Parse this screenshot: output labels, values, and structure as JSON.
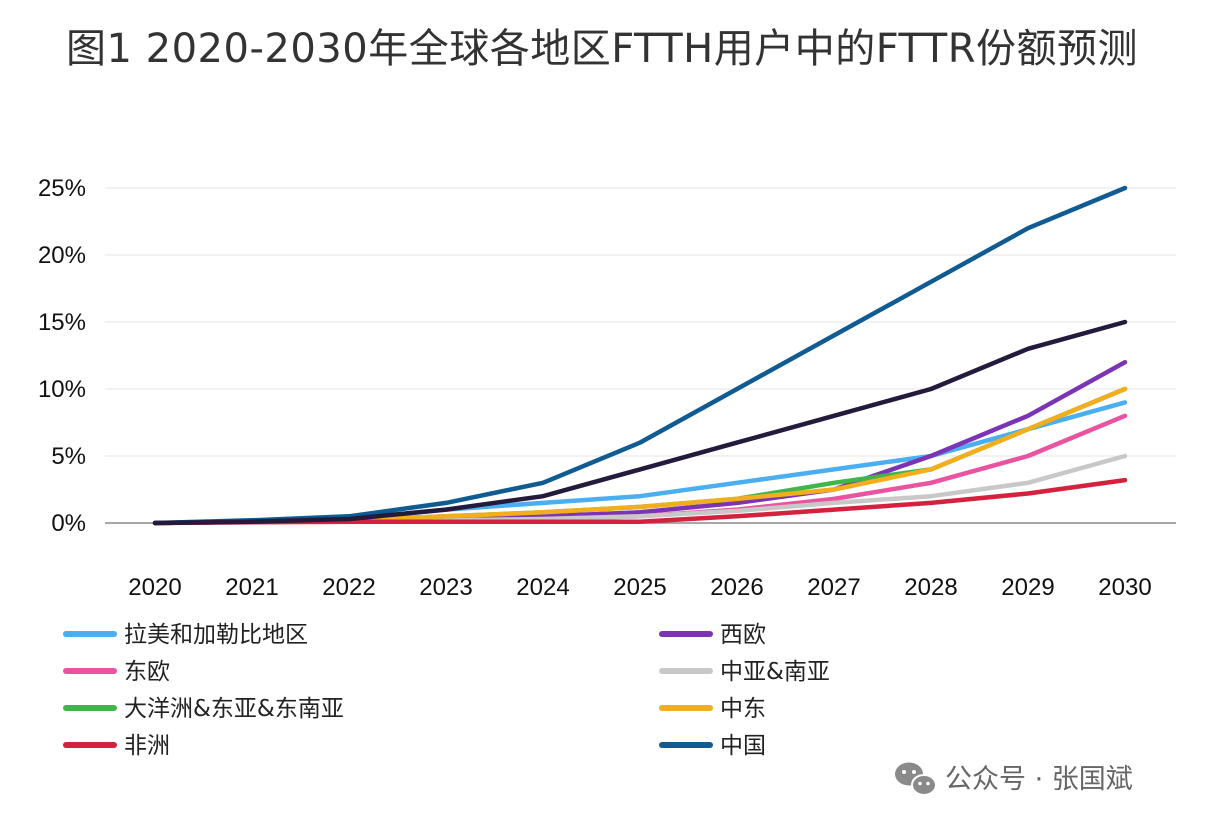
{
  "title": "图1  2020-2030年全球各地区FTTH用户中的FTTR份额预测",
  "watermark": {
    "text": "公众号 · 张国斌",
    "icon": "wechat-icon"
  },
  "chart_data": {
    "type": "line",
    "title": "图1  2020-2030年全球各地区FTTH用户中的FTTR份额预测",
    "xlabel": "",
    "ylabel": "",
    "x": [
      "2020",
      "2021",
      "2022",
      "2023",
      "2024",
      "2025",
      "2026",
      "2027",
      "2028",
      "2029",
      "2030"
    ],
    "ylim": [
      0,
      25
    ],
    "yticks": [
      0,
      5,
      10,
      15,
      20,
      25
    ],
    "ytick_labels": [
      "0%",
      "5%",
      "10%",
      "15%",
      "20%",
      "25%"
    ],
    "grid": true,
    "legend_position": "bottom",
    "series": [
      {
        "name": "拉美和加勒比地区",
        "color": "#4aaef0",
        "values": [
          0,
          0.1,
          0.3,
          1.0,
          1.5,
          2.0,
          3.0,
          4.0,
          5.0,
          7.0,
          9.0
        ]
      },
      {
        "name": "西欧",
        "color": "#7b35b4",
        "values": [
          0,
          0.1,
          0.2,
          0.3,
          0.5,
          0.8,
          1.5,
          2.5,
          5.0,
          8.0,
          12.0
        ]
      },
      {
        "name": "东欧",
        "color": "#e9539f",
        "values": [
          0,
          0.1,
          0.1,
          0.2,
          0.3,
          0.5,
          1.0,
          1.8,
          3.0,
          5.0,
          8.0
        ]
      },
      {
        "name": "中亚&南亚",
        "color": "#c8c8c8",
        "values": [
          0,
          0.1,
          0.1,
          0.2,
          0.3,
          0.5,
          0.9,
          1.5,
          2.0,
          3.0,
          5.0
        ]
      },
      {
        "name": "大洋洲&东亚&东南亚",
        "color": "#3fb54a",
        "values": [
          0,
          0.1,
          0.2,
          0.5,
          0.8,
          1.2,
          1.8,
          3.0,
          4.0,
          7.0,
          10.0
        ]
      },
      {
        "name": "中东",
        "color": "#f2ae1c",
        "values": [
          0,
          0.1,
          0.2,
          0.5,
          0.8,
          1.2,
          1.8,
          2.5,
          4.0,
          7.0,
          10.0
        ]
      },
      {
        "name": "非洲",
        "color": "#d4213d",
        "values": [
          0,
          0.05,
          0.1,
          0.1,
          0.1,
          0.1,
          0.5,
          1.0,
          1.5,
          2.2,
          3.2
        ]
      },
      {
        "name": "中国",
        "color": "#0f5b92",
        "values": [
          0,
          0.2,
          0.5,
          1.5,
          3.0,
          6.0,
          10.0,
          14.0,
          18.0,
          22.0,
          25.0
        ]
      },
      {
        "name": "",
        "color": "#241a3b",
        "values": [
          0,
          0.1,
          0.3,
          1.0,
          2.0,
          4.0,
          6.0,
          8.0,
          10.0,
          13.0,
          15.0
        ]
      }
    ],
    "legend": [
      {
        "name": "拉美和加勒比地区",
        "color": "#4aaef0"
      },
      {
        "name": "西欧",
        "color": "#7b35b4"
      },
      {
        "name": "东欧",
        "color": "#e9539f"
      },
      {
        "name": "中亚&南亚",
        "color": "#c8c8c8"
      },
      {
        "name": "大洋洲&东亚&东南亚",
        "color": "#3fb54a"
      },
      {
        "name": "中东",
        "color": "#f2ae1c"
      },
      {
        "name": "非洲",
        "color": "#d4213d"
      },
      {
        "name": "中国",
        "color": "#0f5b92"
      }
    ]
  }
}
